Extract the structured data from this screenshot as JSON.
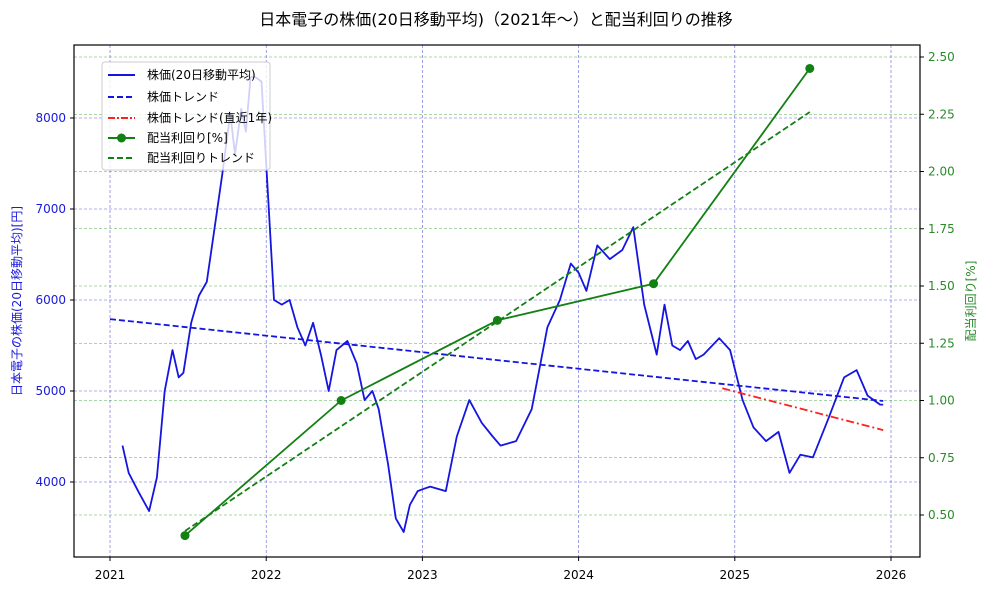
{
  "chart_data": {
    "type": "line",
    "title": "日本電子の株価(20日移動平均)（2021年〜）と配当利回りの推移",
    "xlabel": "",
    "ylabel_left": "日本電子の株価(20日移動平均)[円]",
    "ylabel_right": "配当利回り[%]",
    "x_ticks": [
      "2021",
      "2022",
      "2023",
      "2024",
      "2025",
      "2026"
    ],
    "y_left_ticks": [
      "4000",
      "5000",
      "6000",
      "7000",
      "8000"
    ],
    "y_right_ticks": [
      "0.50",
      "0.75",
      "1.00",
      "1.25",
      "1.50",
      "1.75",
      "2.00",
      "2.25",
      "2.50"
    ],
    "xlim": [
      2020.77,
      2026.18
    ],
    "ylim_left": [
      3250,
      8800
    ],
    "ylim_right": [
      0.37,
      2.55
    ],
    "grid": true,
    "legend_position": "upper left",
    "legend": [
      "株価(20日移動平均)",
      "株価トレンド",
      "株価トレンド(直近1年)",
      "配当利回り[%]",
      "配当利回りトレンド"
    ],
    "colors": {
      "price": "#1515e0",
      "price_trend": "#1515e0",
      "price_trend_recent": "#ff2020",
      "dividend": "#128012",
      "dividend_trend": "#128012",
      "left_axis": "#1a1adc",
      "right_axis": "#2a8a2a"
    },
    "series": [
      {
        "name": "株価(20日移動平均)",
        "axis": "left",
        "style": "solid",
        "x": [
          2021.08,
          2021.12,
          2021.18,
          2021.25,
          2021.3,
          2021.35,
          2021.4,
          2021.44,
          2021.47,
          2021.52,
          2021.57,
          2021.62,
          2021.67,
          2021.72,
          2021.77,
          2021.8,
          2021.84,
          2021.87,
          2021.9,
          2021.93,
          2021.97,
          2022.0,
          2022.05,
          2022.1,
          2022.15,
          2022.2,
          2022.25,
          2022.3,
          2022.35,
          2022.4,
          2022.45,
          2022.52,
          2022.58,
          2022.63,
          2022.68,
          2022.72,
          2022.78,
          2022.83,
          2022.88,
          2022.92,
          2022.97,
          2023.0,
          2023.05,
          2023.15,
          2023.22,
          2023.3,
          2023.38,
          2023.45,
          2023.5,
          2023.6,
          2023.7,
          2023.8,
          2023.88,
          2023.95,
          2024.0,
          2024.05,
          2024.12,
          2024.2,
          2024.28,
          2024.35,
          2024.42,
          2024.5,
          2024.55,
          2024.6,
          2024.65,
          2024.7,
          2024.75,
          2024.8,
          2024.9,
          2024.97,
          2025.05,
          2025.12,
          2025.2,
          2025.28,
          2025.35,
          2025.42,
          2025.5,
          2025.6,
          2025.7,
          2025.78,
          2025.85,
          2025.93,
          2025.95
        ],
        "values": [
          4400,
          4100,
          3900,
          3680,
          4050,
          5000,
          5450,
          5150,
          5200,
          5750,
          6050,
          6200,
          6800,
          7400,
          8050,
          7600,
          8100,
          7850,
          8450,
          8450,
          8400,
          7500,
          6000,
          5950,
          6000,
          5700,
          5500,
          5750,
          5400,
          5000,
          5450,
          5550,
          5300,
          4900,
          5000,
          4800,
          4200,
          3600,
          3450,
          3750,
          3900,
          3920,
          3950,
          3900,
          4500,
          4900,
          4650,
          4500,
          4400,
          4450,
          4800,
          5700,
          6000,
          6400,
          6300,
          6100,
          6600,
          6450,
          6550,
          6800,
          5950,
          5400,
          5950,
          5500,
          5450,
          5550,
          5350,
          5400,
          5580,
          5450,
          4900,
          4600,
          4450,
          4550,
          4100,
          4300,
          4270,
          4700,
          5150,
          5230,
          4950,
          4850,
          4850
        ]
      },
      {
        "name": "株価トレンド",
        "axis": "left",
        "style": "dashed",
        "x": [
          2021.0,
          2025.95
        ],
        "values": [
          5790,
          4890
        ]
      },
      {
        "name": "株価トレンド(直近1年)",
        "axis": "left",
        "style": "dashdot",
        "x": [
          2024.92,
          2025.95
        ],
        "values": [
          5030,
          4570
        ]
      },
      {
        "name": "配当利回り[%]",
        "axis": "right",
        "style": "solid-marker",
        "x": [
          2021.48,
          2022.48,
          2023.48,
          2024.48,
          2025.48
        ],
        "values": [
          0.41,
          1.0,
          1.35,
          1.51,
          2.45
        ]
      },
      {
        "name": "配当利回りトレンド",
        "axis": "right",
        "style": "dashed",
        "x": [
          2021.48,
          2025.48
        ],
        "values": [
          0.43,
          2.26
        ]
      }
    ]
  }
}
